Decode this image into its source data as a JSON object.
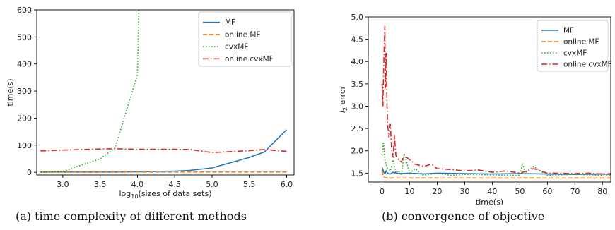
{
  "captions": {
    "a": "(a) time complexity of different methods",
    "b": "(b) convergence of objective"
  },
  "chart_data": [
    {
      "type": "line",
      "title": "",
      "xlabel": "log10(sizes of data sets)",
      "xlabel_prefix": "log",
      "xlabel_sub": "10",
      "xlabel_suffix": "(sizes of data sets)",
      "ylabel": "time(s)",
      "xlim": [
        2.65,
        6.1
      ],
      "ylim": [
        -10,
        600
      ],
      "xticks": [
        3.0,
        3.5,
        4.0,
        4.5,
        5.0,
        5.5,
        6.0
      ],
      "xtick_labels": [
        "3.0",
        "3.5",
        "4.0",
        "4.5",
        "5.0",
        "5.5",
        "6.0"
      ],
      "yticks": [
        0,
        100,
        200,
        300,
        400,
        500,
        600
      ],
      "ytick_labels": [
        "0",
        "100",
        "200",
        "300",
        "400",
        "500",
        "600"
      ],
      "grid": false,
      "legend_position": "top-right",
      "series": [
        {
          "name": "MF",
          "color": "#1f77b4",
          "dash": "",
          "x": [
            2.7,
            3.0,
            3.5,
            3.7,
            4.0,
            4.5,
            4.7,
            5.0,
            5.5,
            5.7,
            6.0
          ],
          "y": [
            1,
            1,
            1,
            1,
            2,
            4,
            7,
            16,
            55,
            75,
            157
          ]
        },
        {
          "name": "online MF",
          "color": "#ff7f0e",
          "dash": "6,3",
          "x": [
            2.7,
            3.0,
            3.5,
            3.7,
            4.0,
            4.5,
            4.7,
            5.0,
            5.5,
            5.7,
            6.0
          ],
          "y": [
            1,
            1,
            1,
            1,
            1,
            1,
            1,
            1,
            1,
            1,
            1
          ]
        },
        {
          "name": "cvxMF",
          "color": "#2ca02c",
          "dash": "1.5,2.5",
          "x": [
            2.7,
            3.0,
            3.5,
            3.7,
            4.0,
            4.02
          ],
          "y": [
            0,
            3,
            50,
            90,
            360,
            600
          ]
        },
        {
          "name": "online cvxMF",
          "color": "#d62728",
          "dash": "8,3,1.5,3",
          "x": [
            2.7,
            3.0,
            3.5,
            3.7,
            4.0,
            4.5,
            4.7,
            5.0,
            5.5,
            5.7,
            6.0
          ],
          "y": [
            79,
            82,
            86,
            87,
            85,
            85,
            84,
            73,
            80,
            84,
            77
          ]
        }
      ]
    },
    {
      "type": "line",
      "title": "",
      "xlabel": "time(s)",
      "ylabel": "l2 error",
      "ylabel_prefix": "l",
      "ylabel_sub": "2",
      "ylabel_suffix": " error",
      "xlim": [
        -5,
        83
      ],
      "ylim": [
        1.3,
        5.0
      ],
      "xticks": [
        0,
        10,
        20,
        30,
        40,
        50,
        60,
        70,
        80
      ],
      "xtick_labels": [
        "0",
        "10",
        "20",
        "30",
        "40",
        "50",
        "60",
        "70",
        "80"
      ],
      "yticks": [
        1.5,
        2.0,
        2.5,
        3.0,
        3.5,
        4.0,
        4.5,
        5.0
      ],
      "ytick_labels": [
        "1.5",
        "2.0",
        "2.5",
        "3.0",
        "3.5",
        "4.0",
        "4.5",
        "5.0"
      ],
      "grid": false,
      "legend_position": "top-right",
      "series": [
        {
          "name": "MF",
          "color": "#1f77b4",
          "dash": "",
          "x": [
            0,
            0.3,
            0.6,
            1,
            1.5,
            2,
            3,
            4,
            5,
            7,
            10,
            15,
            20,
            30,
            40,
            50,
            60,
            70,
            80,
            83
          ],
          "y": [
            1.5,
            1.58,
            1.52,
            1.49,
            1.55,
            1.5,
            1.48,
            1.52,
            1.5,
            1.49,
            1.5,
            1.48,
            1.5,
            1.49,
            1.48,
            1.49,
            1.48,
            1.47,
            1.48,
            1.47
          ]
        },
        {
          "name": "online MF",
          "color": "#ff7f0e",
          "dash": "6,3",
          "x": [
            0,
            0.5,
            1,
            2,
            3,
            10,
            20,
            40,
            60,
            80,
            83
          ],
          "y": [
            1.55,
            1.42,
            1.4,
            1.39,
            1.39,
            1.39,
            1.39,
            1.39,
            1.39,
            1.39,
            1.39
          ]
        },
        {
          "name": "cvxMF",
          "color": "#2ca02c",
          "dash": "1.5,2.5",
          "x": [
            0,
            0.5,
            1,
            1.5,
            2,
            3,
            4,
            5,
            6,
            7,
            8,
            10,
            12,
            15,
            20,
            25,
            30,
            40,
            50,
            51,
            52,
            55,
            60,
            70,
            80,
            83
          ],
          "y": [
            1.9,
            2.2,
            1.8,
            1.7,
            1.6,
            1.55,
            1.8,
            1.5,
            1.55,
            1.45,
            1.95,
            1.5,
            1.6,
            1.45,
            1.5,
            1.45,
            1.47,
            1.46,
            1.45,
            1.72,
            1.5,
            1.65,
            1.45,
            1.47,
            1.45,
            1.46
          ]
        },
        {
          "name": "online cvxMF",
          "color": "#d62728",
          "dash": "8,3,1.5,3",
          "x": [
            0,
            0.3,
            0.6,
            1,
            1.2,
            1.5,
            1.8,
            2,
            2.5,
            3,
            3.5,
            4,
            4.5,
            5,
            6,
            7,
            8,
            10,
            12,
            15,
            18,
            20,
            25,
            30,
            35,
            40,
            45,
            50,
            55,
            60,
            65,
            70,
            75,
            80,
            83
          ],
          "y": [
            3.5,
            3.0,
            3.9,
            4.8,
            3.4,
            4.2,
            3.0,
            2.6,
            2.3,
            2.6,
            2.0,
            1.85,
            2.35,
            1.9,
            1.8,
            1.75,
            1.9,
            1.8,
            1.7,
            1.65,
            1.7,
            1.6,
            1.58,
            1.55,
            1.57,
            1.52,
            1.55,
            1.5,
            1.6,
            1.5,
            1.5,
            1.49,
            1.5,
            1.48,
            1.49
          ]
        }
      ]
    }
  ]
}
